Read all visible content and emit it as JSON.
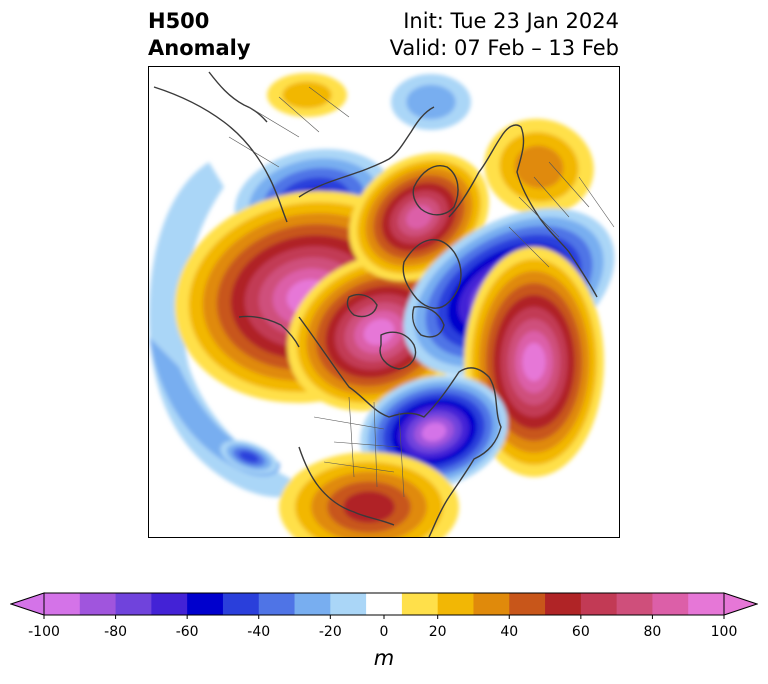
{
  "title": {
    "left_line1": "H500",
    "left_line2": "Anomaly",
    "right_line1": "Init: Tue 23 Jan 2024",
    "right_line2": "Valid: 07 Feb – 13 Feb"
  },
  "colorbar": {
    "unit": "m",
    "tick_labels": [
      "-100",
      "-80",
      "-60",
      "-40",
      "-20",
      "0",
      "20",
      "40",
      "60",
      "80",
      "100"
    ],
    "levels": [
      -100,
      -90,
      -80,
      -70,
      -60,
      -50,
      -40,
      -30,
      -20,
      -10,
      10,
      20,
      30,
      40,
      50,
      60,
      70,
      80,
      90,
      100
    ],
    "colors": [
      "#d473e8",
      "#a055dd",
      "#7043dc",
      "#4322d6",
      "#0000cd",
      "#2a3fdb",
      "#4f74e6",
      "#78aef0",
      "#aad6f7",
      "#ffffff",
      "#ffe04a",
      "#f2b705",
      "#e08a0b",
      "#c8561a",
      "#b02426",
      "#c23a55",
      "#cf4f7b",
      "#dc5fa8",
      "#e677d7"
    ],
    "extend_low_color": "#d473e8",
    "extend_high_color": "#e677d7"
  },
  "map": {
    "projection": "north-polar-stereographic",
    "field": "500 hPa geopotential height anomaly",
    "features": [
      {
        "name": "arctic-siberia-ridge",
        "sign": "positive",
        "peak_m": 100
      },
      {
        "name": "scandinavia-ridge",
        "sign": "positive",
        "peak_m": 80
      },
      {
        "name": "north-atlantic-ridge",
        "sign": "positive",
        "peak_m": 90
      },
      {
        "name": "europe-trough",
        "sign": "negative",
        "peak_m": -100
      },
      {
        "name": "eastern-north-america-trough",
        "sign": "negative",
        "peak_m": -90
      },
      {
        "name": "central-asia-trough",
        "sign": "negative",
        "peak_m": -40
      },
      {
        "name": "north-pacific-trough",
        "sign": "negative",
        "peak_m": -40
      },
      {
        "name": "southern-us-ridge",
        "sign": "positive",
        "peak_m": 50
      },
      {
        "name": "central-asia-ridge",
        "sign": "positive",
        "peak_m": 20
      },
      {
        "name": "mediterranean-ridge",
        "sign": "positive",
        "peak_m": 30
      }
    ]
  }
}
